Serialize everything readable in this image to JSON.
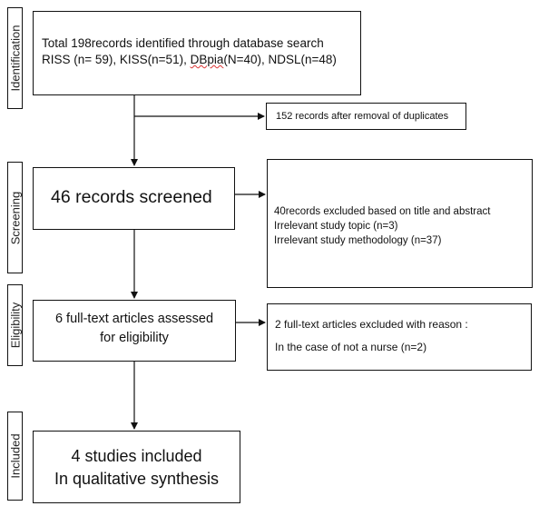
{
  "stages": {
    "identification": "Identification",
    "screening": "Screening",
    "eligibility": "Eligibility",
    "included": "Included"
  },
  "identification_box": {
    "line1": "Total 198records identified through database search",
    "line2_a": "RISS (n= 59), KISS(n=51), ",
    "line2_db": "DBpia",
    "line2_b": "(N=40), NDSL(n=48)"
  },
  "duplicates_box": {
    "text": "152 records after removal of duplicates"
  },
  "screened_box": {
    "text": "46 records screened"
  },
  "excluded_box": {
    "line1": "40records excluded based on title and abstract",
    "line2": "Irrelevant study topic (n=3)",
    "line3": "Irrelevant study methodology (n=37)"
  },
  "eligibility_box": {
    "line1": "6 full-text articles assessed",
    "line2": "for eligibility"
  },
  "fulltext_excluded_box": {
    "line1": "2 full-text articles excluded with reason :",
    "line2": "In the case of not a nurse (n=2)"
  },
  "included_box": {
    "line1": "4 studies included",
    "line2": "In qualitative synthesis"
  }
}
